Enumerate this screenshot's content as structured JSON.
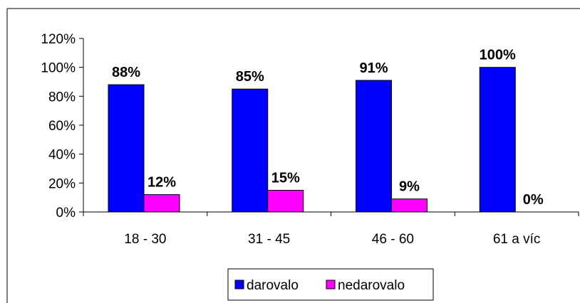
{
  "chart_data": {
    "type": "bar",
    "categories": [
      "18 - 30",
      "31 - 45",
      "46 - 60",
      "61 a víc"
    ],
    "series": [
      {
        "name": "darovalo",
        "values": [
          88,
          85,
          91,
          100
        ],
        "labels": [
          "88%",
          "85%",
          "91%",
          "100%"
        ],
        "color": "#0000FF"
      },
      {
        "name": "nedarovalo",
        "values": [
          12,
          15,
          9,
          0
        ],
        "labels": [
          "12%",
          "15%",
          "9%",
          "0%"
        ],
        "color": "#FF00FF"
      }
    ],
    "ylim": [
      0,
      120
    ],
    "yticks": [
      0,
      20,
      40,
      60,
      80,
      100,
      120
    ],
    "ytick_labels": [
      "0%",
      "20%",
      "40%",
      "60%",
      "80%",
      "100%",
      "120%"
    ],
    "grid": false,
    "legend": "bottom",
    "title": "",
    "xlabel": "",
    "ylabel": ""
  }
}
